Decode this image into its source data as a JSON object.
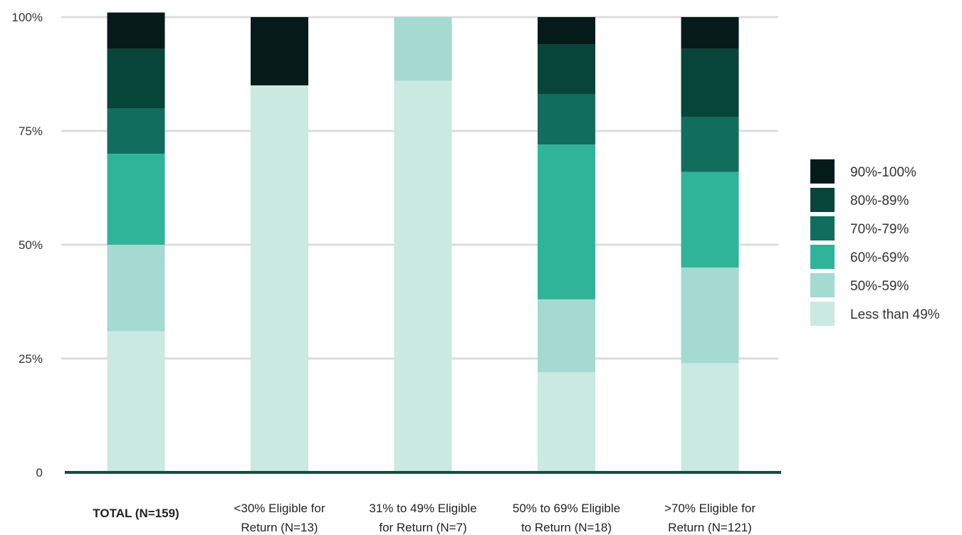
{
  "chart_data": {
    "type": "bar",
    "stacked": true,
    "title": "",
    "xlabel": "",
    "ylabel": "",
    "ylim": [
      0,
      100
    ],
    "y_ticks": [
      {
        "value": 0,
        "label": "0"
      },
      {
        "value": 25,
        "label": "25%"
      },
      {
        "value": 50,
        "label": "50%"
      },
      {
        "value": 75,
        "label": "75%"
      },
      {
        "value": 100,
        "label": "100%"
      }
    ],
    "grid": true,
    "legend_position": "right",
    "categories": [
      {
        "lines": [
          "TOTAL (N=159)"
        ],
        "bold": true
      },
      {
        "lines": [
          "<30% Eligible for",
          "Return (N=13)"
        ],
        "bold": false
      },
      {
        "lines": [
          "31% to 49% Eligible",
          "for Return (N=7)"
        ],
        "bold": false
      },
      {
        "lines": [
          "50% to 69% Eligible",
          "to Return (N=18)"
        ],
        "bold": false
      },
      {
        "lines": [
          ">70% Eligible for",
          "Return (N=121)"
        ],
        "bold": false
      }
    ],
    "series": [
      {
        "name": "Less than 49%",
        "color": "#c9e9e1",
        "values": [
          31,
          85,
          86,
          22,
          24
        ]
      },
      {
        "name": "50%-59%",
        "color": "#a4dad0",
        "values": [
          19,
          0,
          14,
          16,
          21
        ]
      },
      {
        "name": "60%-69%",
        "color": "#2fb49a",
        "values": [
          20,
          0,
          0,
          34,
          21
        ]
      },
      {
        "name": "70%-79%",
        "color": "#116d5c",
        "values": [
          10,
          0,
          0,
          11,
          12
        ]
      },
      {
        "name": "80%-89%",
        "color": "#07443a",
        "values": [
          13,
          0,
          0,
          11,
          15
        ]
      },
      {
        "name": "90%-100%",
        "color": "#041b19",
        "values": [
          8,
          15,
          0,
          6,
          7
        ]
      }
    ],
    "legend_order": [
      "90%-100%",
      "80%-89%",
      "70%-79%",
      "60%-69%",
      "50%-59%",
      "Less than 49%"
    ]
  }
}
